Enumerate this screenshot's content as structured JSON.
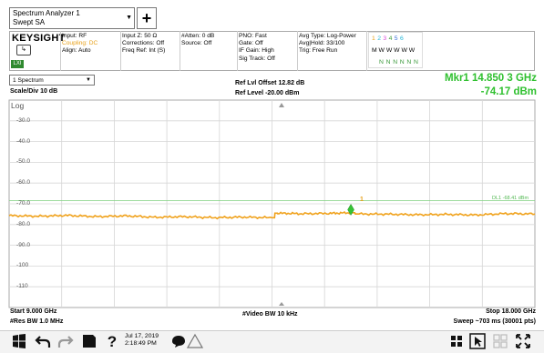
{
  "window": {
    "title": "Spectrum Analyzer 1",
    "subtitle": "Swept SA",
    "add_button": "+"
  },
  "brand": {
    "name": "KEYSIGHT",
    "lxi": "LXI"
  },
  "settings": {
    "input": "Input: RF",
    "coupling": "Coupling: DC",
    "align": "Align: Auto",
    "input_z": "Input Z: 50 Ω",
    "corrections": "Corrections: Off",
    "freq_ref": "Freq Ref: Int (S)",
    "atten": "#Atten: 0 dB",
    "source": "Source: Off",
    "pno": "PNO: Fast",
    "gate": "Gate: Off",
    "if_gain": "IF Gain: High",
    "sig_track": "Sig Track: Off",
    "avg_type": "Avg Type: Log-Power",
    "avg_hold": "Avg|Hold: 33/100",
    "trig": "Trig: Free Run"
  },
  "trace_indicator": {
    "numbers": [
      "1",
      "2",
      "3",
      "4",
      "5",
      "6"
    ],
    "number_colors": [
      "#e8a11a",
      "#27b7d8",
      "#d94ad9",
      "#3c9a3c",
      "#3b6fd6",
      "#27b7d8"
    ],
    "types": "M W W W W W",
    "dets": "N N N N N N"
  },
  "view": {
    "select_label": "1 Spectrum",
    "scale_div": "Scale/Div 10 dB",
    "ref_offset": "Ref Lvl Offset 12.82 dB",
    "ref_level": "Ref Level -20.00 dBm",
    "log_label": "Log"
  },
  "marker": {
    "label": "Mkr1 14.850 3 GHz",
    "amplitude": "-74.17 dBm",
    "number": "1"
  },
  "display_line": {
    "label": "DL1 -68.41 dBm"
  },
  "chart_data": {
    "type": "line",
    "ylim": [
      -120,
      -20
    ],
    "xlim": [
      9.0,
      18.0
    ],
    "x_unit": "GHz",
    "y_unit": "dBm",
    "ytick_labels": [
      "-30.0",
      "-40.0",
      "-50.0",
      "-60.0",
      "-70.0",
      "-80.0",
      "-90.0",
      "-100",
      "-110"
    ],
    "display_line_dbm": -68.41,
    "marker": {
      "x": 14.8503,
      "y": -74.17
    },
    "series": [
      {
        "color": "#f0a21c",
        "x": [
          9.0,
          9.5,
          10.0,
          10.5,
          11.0,
          11.5,
          12.0,
          12.5,
          13.0,
          13.5,
          13.6,
          14.0,
          14.5,
          14.85,
          15.0,
          15.5,
          16.0,
          16.5,
          17.0,
          17.5,
          18.0
        ],
        "y": [
          -75.7,
          -76.0,
          -75.6,
          -76.2,
          -75.8,
          -76.5,
          -76.2,
          -76.7,
          -76.4,
          -76.7,
          -74.5,
          -74.8,
          -74.6,
          -74.3,
          -74.9,
          -75.0,
          -75.3,
          -75.1,
          -75.4,
          -74.7,
          -74.9
        ]
      }
    ]
  },
  "footer": {
    "start": "Start 9.000 GHz",
    "res_bw": "#Res BW 1.0 MHz",
    "video_bw": "#Video BW 10 kHz",
    "stop": "Stop 18.000 GHz",
    "sweep": "Sweep ~703 ms (30001 pts)"
  },
  "taskbar": {
    "date": "Jul 17, 2019",
    "time": "2:18:49 PM"
  }
}
